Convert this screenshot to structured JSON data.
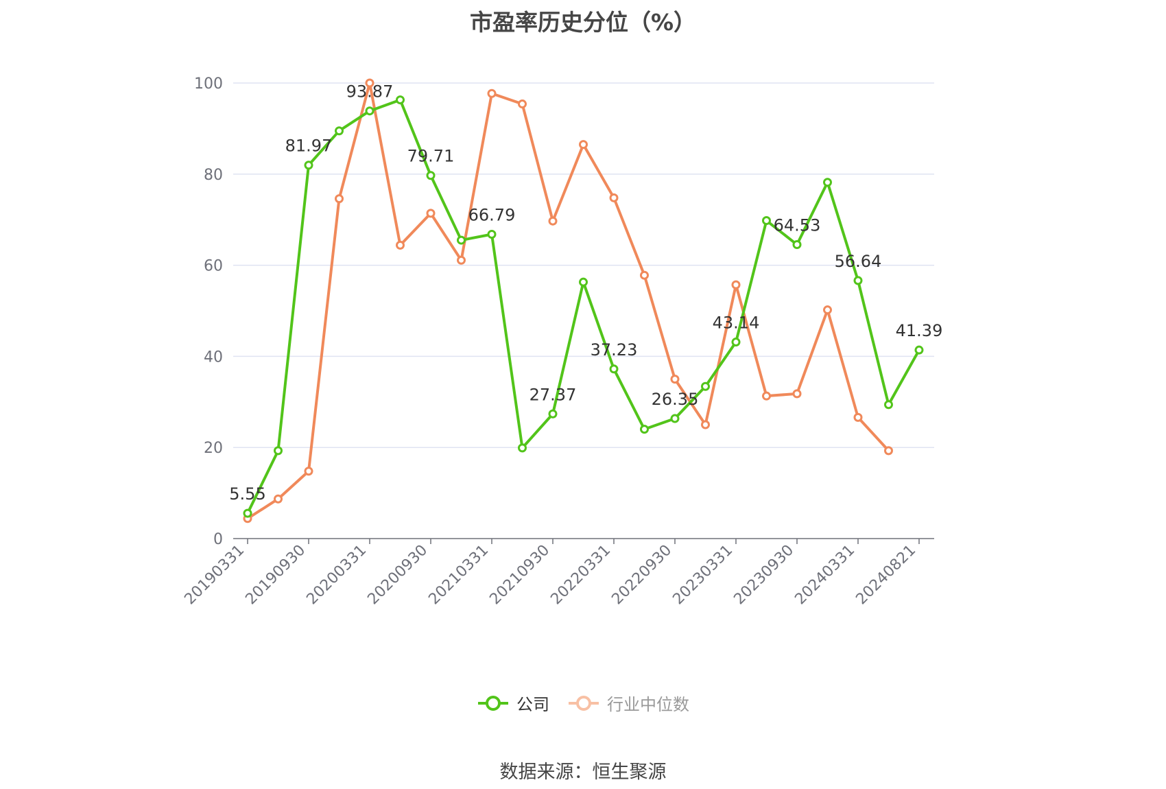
{
  "title": "市盈率历史分位（%）",
  "source_note": "数据来源：恒生聚源",
  "colors": {
    "company": "#52c41a",
    "industry": "#f0895a",
    "industry_legend": "#f8c0a4",
    "grid": "#dfe3f2",
    "axis": "#6e7079"
  },
  "chart_data": {
    "type": "line",
    "ylim": [
      0,
      100
    ],
    "yticks": [
      "0",
      "20",
      "40",
      "60",
      "80",
      "100"
    ],
    "x": [
      "20190331",
      "20190630",
      "20190930",
      "20191231",
      "20200331",
      "20200630",
      "20200930",
      "20201231",
      "20210331",
      "20210630",
      "20210930",
      "20211231",
      "20220331",
      "20220630",
      "20220930",
      "20221231",
      "20230331",
      "20230630",
      "20230930",
      "20231231",
      "20240331",
      "20240630",
      "20240821"
    ],
    "xtick_labels": [
      "20190331",
      "20190930",
      "20200331",
      "20200930",
      "20210331",
      "20210930",
      "20220331",
      "20220930",
      "20230331",
      "20230930",
      "20240331",
      "20240821"
    ],
    "series": [
      {
        "name": "公司",
        "values": [
          5.55,
          19.3,
          81.97,
          89.5,
          93.87,
          96.3,
          79.71,
          65.5,
          66.79,
          19.9,
          27.37,
          56.3,
          37.23,
          24.0,
          26.35,
          33.4,
          43.14,
          69.8,
          64.53,
          78.2,
          56.64,
          29.4,
          41.39
        ],
        "labels": [
          "5.55",
          "",
          "81.97",
          "",
          "93.87",
          "",
          "79.71",
          "",
          "66.79",
          "",
          "27.37",
          "",
          "37.23",
          "",
          "26.35",
          "",
          "43.14",
          "",
          "64.53",
          "",
          "56.64",
          "",
          "41.39"
        ]
      },
      {
        "name": "行业中位数",
        "values": [
          4.4,
          8.7,
          14.8,
          74.6,
          100.0,
          64.4,
          71.4,
          61.1,
          97.7,
          95.4,
          69.7,
          86.5,
          74.8,
          57.8,
          35.0,
          25.0,
          55.7,
          31.3,
          31.8,
          50.2,
          26.6,
          19.3,
          null
        ]
      }
    ]
  }
}
